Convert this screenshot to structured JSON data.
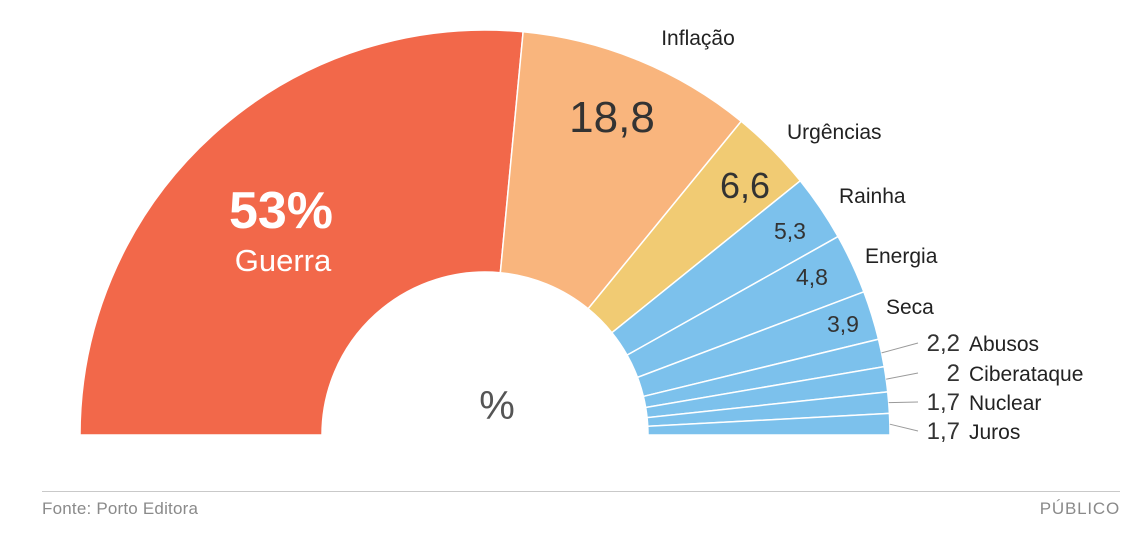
{
  "chart_data": {
    "type": "pie",
    "variant": "half-donut",
    "unit_label": "%",
    "slices": [
      {
        "label": "Guerra",
        "value": 53,
        "value_label": "53%",
        "color": "#f2684a"
      },
      {
        "label": "Inflação",
        "value": 18.8,
        "value_label": "18,8",
        "color": "#f9b57d"
      },
      {
        "label": "Urgências",
        "value": 6.6,
        "value_label": "6,6",
        "color": "#f1cb73"
      },
      {
        "label": "Rainha",
        "value": 5.3,
        "value_label": "5,3",
        "color": "#7cc1ec"
      },
      {
        "label": "Energia",
        "value": 4.8,
        "value_label": "4,8",
        "color": "#7cc1ec"
      },
      {
        "label": "Seca",
        "value": 3.9,
        "value_label": "3,9",
        "color": "#7cc1ec"
      },
      {
        "label": "Abusos",
        "value": 2.2,
        "value_label": "2,2",
        "color": "#7cc1ec"
      },
      {
        "label": "Ciberataque",
        "value": 2,
        "value_label": "2",
        "color": "#7cc1ec"
      },
      {
        "label": "Nuclear",
        "value": 1.7,
        "value_label": "1,7",
        "color": "#7cc1ec"
      },
      {
        "label": "Juros",
        "value": 1.7,
        "value_label": "1,7",
        "color": "#7cc1ec"
      }
    ]
  },
  "footer": {
    "source": "Fonte: Porto Editora",
    "credit": "PÚBLICO"
  }
}
